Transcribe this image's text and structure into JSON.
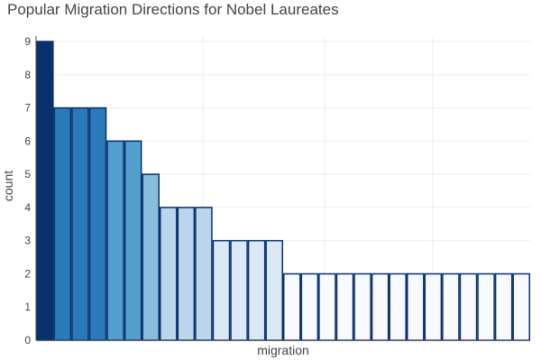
{
  "chart_data": {
    "type": "bar",
    "title": "Popular Migration Directions for Nobel Laureates",
    "xlabel": "migration",
    "ylabel": "count",
    "ylim": [
      0,
      9
    ],
    "yticks": [
      "0",
      "1",
      "2",
      "3",
      "4",
      "5",
      "6",
      "7",
      "8",
      "9"
    ],
    "grid": true,
    "values": [
      9,
      7,
      7,
      7,
      6,
      6,
      5,
      4,
      4,
      4,
      3,
      3,
      3,
      3,
      2,
      2,
      2,
      2,
      2,
      2,
      2,
      2,
      2,
      2,
      2,
      2,
      2,
      2
    ],
    "colorscale": "Blues",
    "bar_outline_color": "#08306b",
    "show_x_tick_labels": false
  }
}
